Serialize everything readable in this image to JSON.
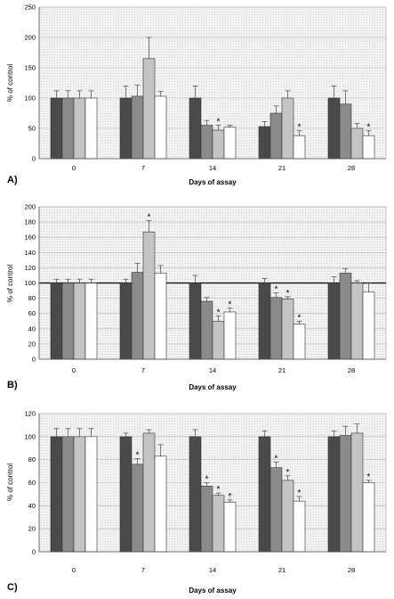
{
  "figure": {
    "panels": [
      {
        "letter": "A)",
        "ylabel": "% of control",
        "xlabel": "Days of assay"
      },
      {
        "letter": "B)",
        "ylabel": "% of control",
        "xlabel": "Days of assay"
      },
      {
        "letter": "C)",
        "ylabel": "% of control",
        "xlabel": "Days of assay"
      }
    ]
  },
  "chart_data": [
    {
      "type": "bar",
      "title": "",
      "xlabel": "Days of assay",
      "ylabel": "% of control",
      "ylim": [
        0,
        250
      ],
      "yticks": [
        0,
        50,
        100,
        150,
        200,
        250
      ],
      "grid": true,
      "categories": [
        "0",
        "7",
        "14",
        "21",
        "28"
      ],
      "series_colors": [
        "#4a4a4a",
        "#8a8a8a",
        "#c4c4c4",
        "#ffffff"
      ],
      "series": [
        {
          "values": [
            100,
            100,
            100,
            53,
            100
          ],
          "errors": [
            12,
            20,
            20,
            8,
            20
          ],
          "stars": [
            false,
            false,
            false,
            false,
            false
          ]
        },
        {
          "values": [
            100,
            103,
            55,
            75,
            90
          ],
          "errors": [
            12,
            18,
            8,
            12,
            22
          ],
          "stars": [
            false,
            false,
            false,
            false,
            false
          ]
        },
        {
          "values": [
            100,
            165,
            47,
            100,
            50
          ],
          "errors": [
            12,
            35,
            8,
            12,
            8
          ],
          "stars": [
            false,
            false,
            true,
            false,
            false
          ]
        },
        {
          "values": [
            100,
            103,
            52,
            38,
            38
          ],
          "errors": [
            12,
            8,
            3,
            8,
            8
          ],
          "stars": [
            false,
            false,
            false,
            true,
            true
          ]
        }
      ]
    },
    {
      "type": "bar",
      "title": "",
      "xlabel": "Days of assay",
      "ylabel": "% of control",
      "ylim": [
        0,
        200
      ],
      "yticks": [
        0,
        20,
        40,
        60,
        80,
        100,
        120,
        140,
        160,
        180,
        200
      ],
      "grid": true,
      "reference_line": 100,
      "categories": [
        "0",
        "7",
        "14",
        "21",
        "28"
      ],
      "series_colors": [
        "#4a4a4a",
        "#8a8a8a",
        "#c4c4c4",
        "#ffffff"
      ],
      "series": [
        {
          "values": [
            100,
            100,
            100,
            100,
            100
          ],
          "errors": [
            5,
            5,
            10,
            6,
            8
          ],
          "stars": [
            false,
            false,
            false,
            false,
            false
          ]
        },
        {
          "values": [
            100,
            114,
            76,
            81,
            113
          ],
          "errors": [
            5,
            12,
            5,
            6,
            6
          ],
          "stars": [
            false,
            false,
            false,
            true,
            false
          ]
        },
        {
          "values": [
            100,
            167,
            50,
            79,
            100
          ],
          "errors": [
            5,
            15,
            7,
            3,
            3
          ],
          "stars": [
            false,
            true,
            true,
            true,
            false
          ]
        },
        {
          "values": [
            100,
            113,
            62,
            46,
            88
          ],
          "errors": [
            5,
            10,
            5,
            4,
            12
          ],
          "stars": [
            false,
            false,
            true,
            true,
            false
          ]
        }
      ]
    },
    {
      "type": "bar",
      "title": "",
      "xlabel": "Days of assay",
      "ylabel": "% of control",
      "ylim": [
        0,
        120
      ],
      "yticks": [
        0,
        20,
        40,
        60,
        80,
        100,
        120
      ],
      "grid": true,
      "categories": [
        "0",
        "7",
        "14",
        "21",
        "28"
      ],
      "series_colors": [
        "#4a4a4a",
        "#8a8a8a",
        "#c4c4c4",
        "#ffffff"
      ],
      "series": [
        {
          "values": [
            100,
            100,
            100,
            100,
            100
          ],
          "errors": [
            7,
            3,
            6,
            5,
            5
          ],
          "stars": [
            false,
            false,
            false,
            false,
            false
          ]
        },
        {
          "values": [
            100,
            76,
            57,
            73,
            101
          ],
          "errors": [
            7,
            5,
            3,
            5,
            8
          ],
          "stars": [
            false,
            true,
            true,
            true,
            false
          ]
        },
        {
          "values": [
            100,
            103,
            49,
            62,
            103
          ],
          "errors": [
            7,
            3,
            2,
            4,
            8
          ],
          "stars": [
            false,
            false,
            true,
            true,
            false
          ]
        },
        {
          "values": [
            100,
            83,
            43,
            44,
            60
          ],
          "errors": [
            7,
            10,
            2,
            4,
            2
          ],
          "stars": [
            false,
            false,
            true,
            true,
            true
          ]
        }
      ]
    }
  ]
}
